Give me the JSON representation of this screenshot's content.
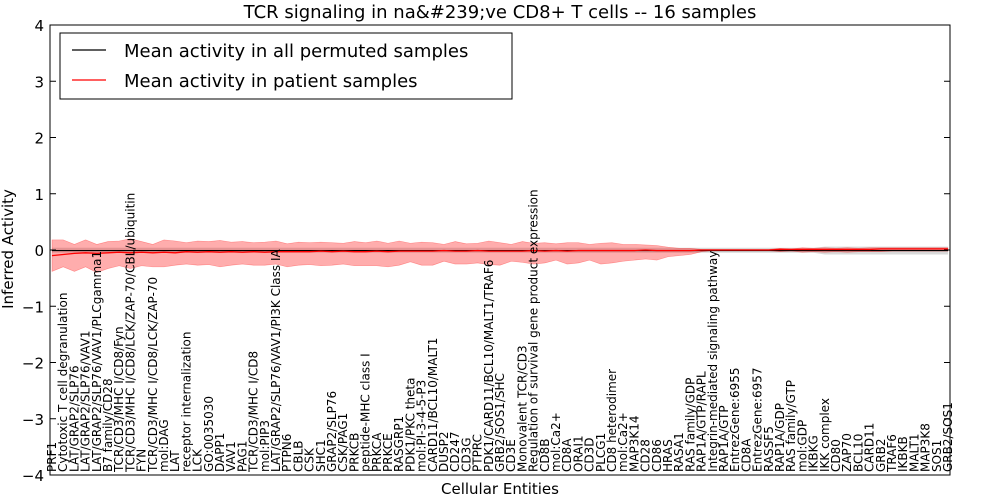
{
  "chart_data": {
    "type": "line",
    "title": "TCR signaling in na&#239;ve CD8+ T cells -- 16 samples",
    "xlabel": "Cellular Entities",
    "ylabel": "Inferred Activity",
    "ylim": [
      -4,
      4
    ],
    "yticks": [
      -4,
      -3,
      -2,
      -1,
      0,
      1,
      2,
      3,
      4
    ],
    "grid": false,
    "legend": {
      "location": "top-left",
      "entries": [
        {
          "label": "Mean activity in all permuted samples",
          "color": "#000000"
        },
        {
          "label": "Mean activity in patient samples",
          "color": "#ff0000"
        }
      ]
    },
    "categories": [
      "PRF1",
      "Cytotoxic T cell degranulation",
      "LAT/GRAP2/SLP76",
      "LAT/GRAP2/SLP76/VAV1",
      "LAT/GRAP2/SLP76/VAV1/PLCgamma1",
      "B7 family/CD28",
      "TCR/CD3/MHC I/CD8/Fyn",
      "TCR/CD3/MHC I/CD8/LCK/ZAP-70/CBL/ubiquitin",
      "FYN",
      "TCR/CD3/MHC I/CD8/LCK/ZAP-70",
      "mol:DAG",
      "LAT",
      "receptor internalization",
      "LCK",
      "GO:0035030",
      "DAPP1",
      "VAV1",
      "PAG1",
      "TCR/CD3/MHC I/CD8",
      "mol:PIP3",
      "LAT/GRAP2/SLP76/VAV1/PI3K Class IA",
      "PTPN6",
      "CBLB",
      "CSK",
      "SHC1",
      "GRAP2/SLP76",
      "CSK/PAG1",
      "PRKCB",
      "peptide-MHC class I",
      "PRKCA",
      "PRKCE",
      "RASGRP1",
      "PDK1/PKC theta",
      "mol:PI-3-4-5-P3",
      "CARD11/BCL10/MALT1",
      "DUSP2",
      "CD247",
      "CD3G",
      "PTPRC",
      "PDK1/CARD11/BCL10/MALT1/TRAF6",
      "GRB2/SOS1/SHC",
      "CD3E",
      "Monovalent TCR/CD3",
      "Regulation of survival gene product expression",
      "CD8B",
      "mol:Ca2+",
      "CD8A",
      "ORAI1",
      "CD3D",
      "PLCG1",
      "CD8 heterodimer",
      "mol:Ca2+",
      "MAP3K14",
      "CD28",
      "CD86",
      "HRAS",
      "RASA1",
      "RAS family/GDP",
      "RAP1A/GTP/RAPL",
      "Integrin-mediated signaling pathway",
      "RAP1A/GTP",
      "EntrezGene:6955",
      "CD8A",
      "EntrezGene:6957",
      "RASSF5",
      "RAP1A/GDP",
      "RAS family/GTP",
      "mol:GDP",
      "IKBKG",
      "IKK complex",
      "CD80",
      "ZAP70",
      "BCL10",
      "CARD11",
      "GRB2",
      "TRAF6",
      "IKBKB",
      "MALT1",
      "MAP3K8",
      "SOS1",
      "GRB2/SOS1"
    ],
    "series": [
      {
        "name": "Mean activity in all permuted samples",
        "color": "#000000",
        "values": [
          -0.01,
          -0.01,
          -0.01,
          -0.01,
          -0.01,
          -0.01,
          -0.01,
          -0.01,
          -0.01,
          -0.01,
          -0.01,
          -0.01,
          -0.01,
          -0.01,
          -0.01,
          -0.01,
          -0.01,
          -0.01,
          -0.01,
          -0.01,
          -0.01,
          -0.01,
          -0.01,
          -0.01,
          -0.01,
          -0.01,
          -0.01,
          -0.01,
          -0.01,
          -0.01,
          -0.01,
          -0.01,
          -0.01,
          -0.01,
          -0.01,
          -0.01,
          -0.01,
          -0.01,
          -0.01,
          -0.01,
          -0.01,
          -0.01,
          -0.01,
          -0.01,
          -0.01,
          -0.01,
          -0.01,
          -0.01,
          -0.01,
          -0.01,
          -0.01,
          -0.01,
          -0.01,
          -0.01,
          -0.01,
          -0.01,
          -0.01,
          -0.01,
          -0.01,
          -0.01,
          -0.01,
          -0.01,
          -0.01,
          -0.01,
          -0.01,
          -0.01,
          -0.01,
          -0.01,
          -0.01,
          -0.01,
          -0.01,
          -0.01,
          -0.01,
          -0.01,
          -0.01,
          -0.01,
          -0.01,
          -0.01,
          -0.01,
          -0.01,
          -0.01
        ],
        "band_lower": [
          -0.05,
          -0.05,
          -0.05,
          -0.05,
          -0.05,
          -0.05,
          -0.05,
          -0.05,
          -0.05,
          -0.05,
          -0.05,
          -0.05,
          -0.05,
          -0.05,
          -0.05,
          -0.05,
          -0.05,
          -0.05,
          -0.05,
          -0.05,
          -0.05,
          -0.05,
          -0.05,
          -0.05,
          -0.05,
          -0.05,
          -0.05,
          -0.05,
          -0.05,
          -0.05,
          -0.05,
          -0.05,
          -0.05,
          -0.05,
          -0.05,
          -0.05,
          -0.05,
          -0.05,
          -0.05,
          -0.05,
          -0.05,
          -0.05,
          -0.05,
          -0.05,
          -0.05,
          -0.05,
          -0.05,
          -0.05,
          -0.05,
          -0.05,
          -0.05,
          -0.05,
          -0.05,
          -0.05,
          -0.05,
          -0.05,
          -0.05,
          -0.05,
          -0.05,
          -0.05,
          -0.05,
          -0.05,
          -0.05,
          -0.05,
          -0.05,
          -0.05,
          -0.05,
          -0.05,
          -0.05,
          -0.08,
          -0.08,
          -0.08,
          -0.08,
          -0.08,
          -0.08,
          -0.08,
          -0.08,
          -0.08,
          -0.08,
          -0.08,
          -0.08
        ],
        "band_upper": [
          0.04,
          0.04,
          0.04,
          0.04,
          0.04,
          0.04,
          0.04,
          0.04,
          0.04,
          0.04,
          0.04,
          0.04,
          0.04,
          0.04,
          0.04,
          0.04,
          0.04,
          0.04,
          0.04,
          0.04,
          0.04,
          0.04,
          0.04,
          0.04,
          0.04,
          0.04,
          0.04,
          0.04,
          0.04,
          0.04,
          0.04,
          0.04,
          0.04,
          0.04,
          0.04,
          0.04,
          0.04,
          0.04,
          0.04,
          0.04,
          0.04,
          0.04,
          0.04,
          0.04,
          0.04,
          0.04,
          0.04,
          0.04,
          0.04,
          0.04,
          0.04,
          0.04,
          0.04,
          0.04,
          0.04,
          0.04,
          0.04,
          0.04,
          0.04,
          0.04,
          0.04,
          0.04,
          0.04,
          0.04,
          0.04,
          0.04,
          0.04,
          0.04,
          0.04,
          0.06,
          0.06,
          0.06,
          0.06,
          0.06,
          0.06,
          0.06,
          0.06,
          0.06,
          0.06,
          0.06,
          0.06
        ]
      },
      {
        "name": "Mean activity in patient samples",
        "color": "#ff0000",
        "values": [
          -0.1,
          -0.08,
          -0.06,
          -0.05,
          -0.06,
          -0.05,
          -0.04,
          -0.05,
          -0.04,
          -0.05,
          -0.04,
          -0.05,
          -0.03,
          -0.04,
          -0.03,
          -0.04,
          -0.03,
          -0.04,
          -0.03,
          -0.04,
          -0.03,
          -0.03,
          -0.03,
          -0.03,
          -0.02,
          -0.03,
          -0.02,
          -0.03,
          -0.03,
          -0.02,
          -0.03,
          -0.02,
          -0.02,
          -0.02,
          -0.02,
          -0.01,
          -0.02,
          -0.02,
          -0.01,
          -0.02,
          -0.02,
          -0.02,
          -0.02,
          -0.01,
          -0.02,
          -0.01,
          -0.02,
          -0.01,
          -0.01,
          -0.01,
          -0.01,
          -0.01,
          -0.01,
          0.0,
          -0.01,
          -0.01,
          -0.01,
          -0.01,
          0.0,
          0.0,
          0.0,
          0.0,
          0.0,
          0.0,
          0.0,
          0.01,
          0.01,
          0.01,
          0.01,
          0.01,
          0.01,
          0.01,
          0.01,
          0.01,
          0.02,
          0.02,
          0.02,
          0.02,
          0.02,
          0.02,
          0.02
        ],
        "band_lower": [
          -0.38,
          -0.3,
          -0.38,
          -0.3,
          -0.4,
          -0.33,
          -0.28,
          -0.33,
          -0.28,
          -0.3,
          -0.3,
          -0.27,
          -0.25,
          -0.27,
          -0.26,
          -0.3,
          -0.27,
          -0.25,
          -0.27,
          -0.27,
          -0.25,
          -0.3,
          -0.27,
          -0.26,
          -0.28,
          -0.27,
          -0.25,
          -0.28,
          -0.28,
          -0.28,
          -0.3,
          -0.27,
          -0.21,
          -0.27,
          -0.27,
          -0.2,
          -0.25,
          -0.25,
          -0.23,
          -0.26,
          -0.27,
          -0.2,
          -0.22,
          -0.25,
          -0.23,
          -0.18,
          -0.25,
          -0.23,
          -0.18,
          -0.25,
          -0.23,
          -0.2,
          -0.18,
          -0.16,
          -0.18,
          -0.12,
          -0.1,
          -0.08,
          -0.03,
          -0.01,
          -0.01,
          -0.01,
          -0.01,
          -0.01,
          -0.01,
          -0.03,
          -0.02,
          -0.04,
          -0.03,
          -0.04,
          -0.03,
          -0.04,
          -0.03,
          -0.03,
          -0.03,
          -0.02,
          -0.02,
          -0.02,
          -0.02,
          -0.02,
          -0.02
        ],
        "band_upper": [
          0.18,
          0.18,
          0.1,
          0.18,
          0.1,
          0.15,
          0.16,
          0.2,
          0.15,
          0.1,
          0.18,
          0.16,
          0.13,
          0.16,
          0.15,
          0.17,
          0.14,
          0.15,
          0.13,
          0.14,
          0.16,
          0.11,
          0.14,
          0.13,
          0.14,
          0.13,
          0.12,
          0.15,
          0.13,
          0.16,
          0.12,
          0.16,
          0.12,
          0.14,
          0.13,
          0.1,
          0.15,
          0.11,
          0.12,
          0.16,
          0.13,
          0.1,
          0.15,
          0.12,
          0.13,
          0.11,
          0.13,
          0.13,
          0.1,
          0.12,
          0.13,
          0.1,
          0.1,
          0.09,
          0.08,
          0.05,
          0.03,
          0.03,
          0.01,
          0.01,
          0.01,
          0.01,
          0.01,
          0.01,
          0.01,
          0.03,
          0.02,
          0.04,
          0.03,
          0.04,
          0.03,
          0.04,
          0.03,
          0.04,
          0.04,
          0.04,
          0.04,
          0.04,
          0.04,
          0.04,
          0.04
        ]
      }
    ]
  }
}
